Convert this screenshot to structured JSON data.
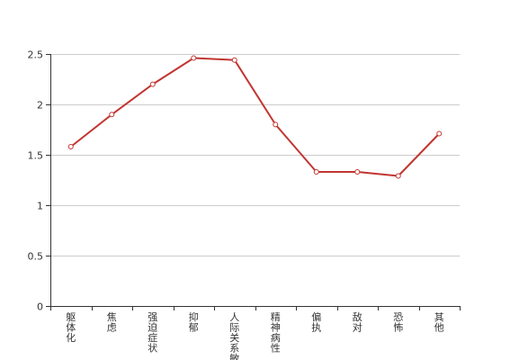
{
  "chart_data": {
    "type": "line",
    "categories": [
      "躯体化",
      "焦虑",
      "强迫症状",
      "抑郁",
      "人际关系敏感",
      "精神病性",
      "偏执",
      "敌对",
      "恐怖",
      "其他"
    ],
    "series": [
      {
        "values": [
          1.58,
          1.9,
          2.2,
          2.46,
          2.44,
          1.8,
          1.33,
          1.33,
          1.29,
          1.71
        ]
      }
    ],
    "y_ticks": [
      "0",
      "0.5",
      "1",
      "1.5",
      "2",
      "2.5"
    ],
    "ylim": [
      0,
      2.5
    ],
    "grid": true,
    "colors": {
      "line": "#c23531",
      "marker_fill": "#ffffff",
      "grid": "#cccccc",
      "axis": "#333333"
    }
  }
}
